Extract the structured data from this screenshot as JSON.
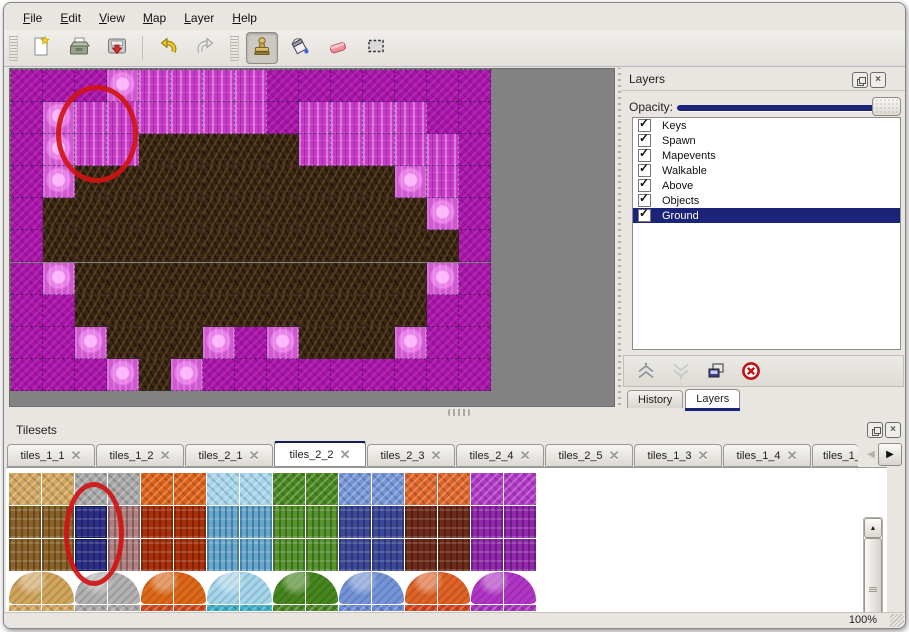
{
  "window": {
    "background": "#e9e6e1"
  },
  "colors": {
    "accent_selection": "#1b2478",
    "annotation_red": "#d01313",
    "map_tiles": {
      "a": "#a913a9",
      "b": "#c73ac7",
      "c": "#d158d1",
      "d": "#372515"
    },
    "tileset_selected_tile": "#2b2f88",
    "map_background": "#828282"
  },
  "menu_bar": {
    "items": [
      {
        "label": "File"
      },
      {
        "label": "Edit"
      },
      {
        "label": "View"
      },
      {
        "label": "Map"
      },
      {
        "label": "Layer"
      },
      {
        "label": "Help"
      }
    ]
  },
  "toolbar": {
    "buttons": [
      {
        "name": "new"
      },
      {
        "name": "open"
      },
      {
        "name": "save"
      },
      {
        "name": "undo"
      },
      {
        "name": "redo"
      },
      {
        "name": "stamp",
        "active": true
      },
      {
        "name": "fill"
      },
      {
        "name": "eraser"
      },
      {
        "name": "rect-select"
      }
    ]
  },
  "map_view": {
    "tile_size": 32,
    "columns": 15,
    "rows": 10,
    "grid": [
      "aaacbbbbaaaaaaa",
      "acbbbbbbabbbbaa",
      "acbbdddddbbbbba",
      "acddddddddddcba",
      "addddddddddddca",
      "addddddddddddda",
      "acdddddddddddca",
      "aadddddddddddaa",
      "aacdddcacdddcaa",
      "aaacdcaaaaaaaaa"
    ],
    "legend": {
      "a": "dark magenta rock",
      "b": "bright magenta pillars",
      "c": "light pink highlight",
      "d": "dark brown cave floor"
    },
    "annotation": "red ellipse circling tiles near top-left"
  },
  "layers_panel": {
    "title": "Layers",
    "opacity": {
      "label": "Opacity:",
      "percent": 100
    },
    "layers": [
      {
        "name": "Keys",
        "visible": true,
        "selected": false
      },
      {
        "name": "Spawn",
        "visible": true,
        "selected": false
      },
      {
        "name": "Mapevents",
        "visible": true,
        "selected": false
      },
      {
        "name": "Walkable",
        "visible": true,
        "selected": false
      },
      {
        "name": "Above",
        "visible": true,
        "selected": false
      },
      {
        "name": "Objects",
        "visible": true,
        "selected": false
      },
      {
        "name": "Ground",
        "visible": true,
        "selected": true
      }
    ],
    "buttons": [
      {
        "name": "raise-layer",
        "enabled": true
      },
      {
        "name": "lower-layer",
        "enabled": false
      },
      {
        "name": "duplicate-layer",
        "enabled": true
      },
      {
        "name": "delete-layer",
        "enabled": true
      }
    ],
    "dock_tabs": [
      {
        "label": "History",
        "active": false
      },
      {
        "label": "Layers",
        "active": true
      }
    ]
  },
  "tilesets_panel": {
    "title": "Tilesets",
    "tabs": [
      {
        "label": "tiles_1_1",
        "active": false
      },
      {
        "label": "tiles_1_2",
        "active": false
      },
      {
        "label": "tiles_2_1",
        "active": false
      },
      {
        "label": "tiles_2_2",
        "active": true
      },
      {
        "label": "tiles_2_3",
        "active": false
      },
      {
        "label": "tiles_2_4",
        "active": false
      },
      {
        "label": "tiles_2_5",
        "active": false
      },
      {
        "label": "tiles_1_3",
        "active": false
      },
      {
        "label": "tiles_1_4",
        "active": false
      },
      {
        "label": "tiles_1_",
        "active": false,
        "truncated": true
      }
    ],
    "scroll_left_enabled": false,
    "scroll_right_enabled": true,
    "grid": {
      "tile_size": 32,
      "columns": 16,
      "rows_visible": 4,
      "partial_fifth_row": true,
      "groups": [
        {
          "name": "sand",
          "top": "#d2a55c",
          "side": "#8a6228",
          "blob": "#d2a55c"
        },
        {
          "name": "gray-rock",
          "top": "#a6a6a6",
          "side": "#b08080",
          "blob": "#b2b2b2"
        },
        {
          "name": "lava",
          "top": "#dd5f14",
          "side": "#a93008",
          "blob": "#dd6818"
        },
        {
          "name": "ice",
          "top": "#a6d6ec",
          "side": "#64a8d2",
          "blob": "#a6d6ec"
        },
        {
          "name": "vines",
          "top": "#47851f",
          "side": "#55932c",
          "blob": "#47851f"
        },
        {
          "name": "crystal",
          "top": "#7494d8",
          "side": "#3c499a",
          "blob": "#7494d8"
        },
        {
          "name": "ember",
          "top": "#df6226",
          "side": "#6e2a18",
          "blob": "#df6226"
        },
        {
          "name": "purple-web",
          "top": "#b136c6",
          "side": "#9227ad",
          "blob": "#b136c6"
        }
      ],
      "partial_row_colors": [
        "#d2a55c",
        "#a6a6a6",
        "#d04818",
        "#38b0c8",
        "#47851f",
        "#6888d8",
        "#d84018",
        "#a830c0"
      ],
      "selected_tile": {
        "column_index": 2,
        "row_indexes": [
          1,
          2
        ]
      },
      "annotation": "red ellipse circling the selected dark-blue tiles"
    }
  },
  "status_bar": {
    "zoom": "100%"
  }
}
